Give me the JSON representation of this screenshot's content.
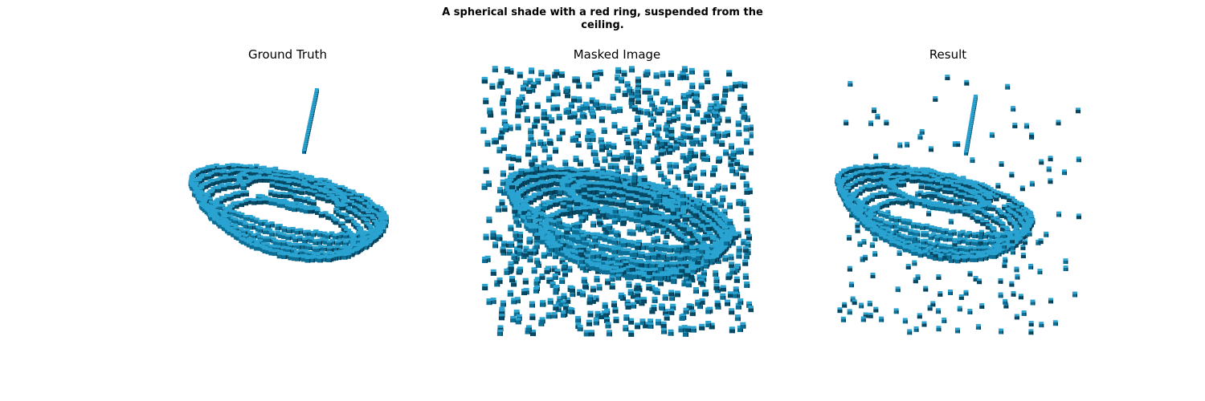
{
  "figure": {
    "title_line1": "A spherical shade with a red ring, suspended from the",
    "title_line2": "ceiling."
  },
  "panels": [
    {
      "id": "ground-truth",
      "title": "Ground Truth"
    },
    {
      "id": "masked-image",
      "title": "Masked Image"
    },
    {
      "id": "result",
      "title": "Result"
    }
  ],
  "colors": {
    "voxel_top": "#2aa3d1",
    "voxel_side": "#0c6f96",
    "voxel_dark": "#064a66",
    "voxel_shadow": "#033349"
  },
  "icons": {
    "voxel": "cube-voxel-icon"
  }
}
